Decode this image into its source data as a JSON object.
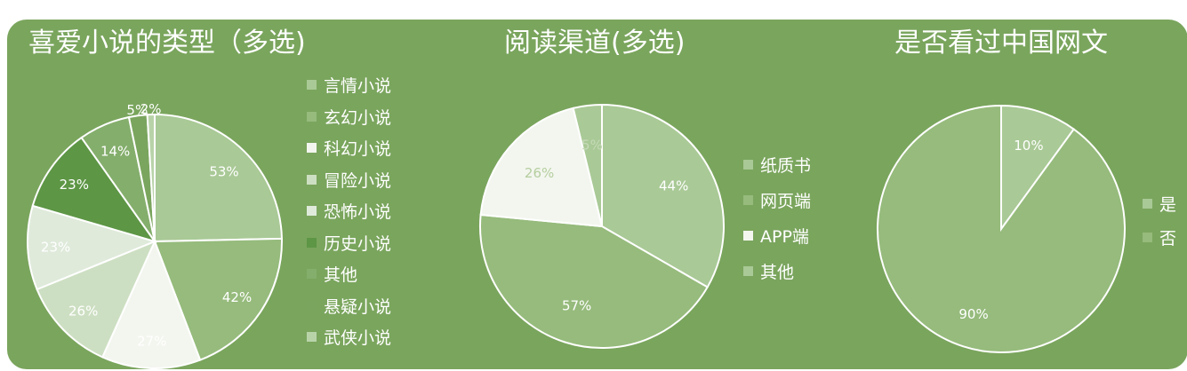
{
  "chart_data": [
    {
      "type": "pie",
      "title": "喜爱小说的类型（多选)",
      "categories": [
        "言情小说",
        "玄幻小说",
        "科幻小说",
        "冒险小说",
        "恐怖小说",
        "历史小说",
        "其他",
        "悬疑小说",
        "武侠小说"
      ],
      "values": [
        53,
        42,
        27,
        26,
        23,
        23,
        14,
        5,
        2
      ],
      "colors": [
        "#a9c996",
        "#96bb7c",
        "#f3f6ef",
        "#cddfc2",
        "#dfeadb",
        "#5d9645",
        "#84ae6c",
        "#7aa55e",
        "#b9d3a9"
      ],
      "legend": "right"
    },
    {
      "type": "pie",
      "title": "阅读渠道(多选)",
      "categories": [
        "纸质书",
        "网页端",
        "APP端",
        "其他"
      ],
      "values": [
        44,
        57,
        26,
        5
      ],
      "colors": [
        "#a9c996",
        "#96bb7c",
        "#f3f6ef",
        "#a9c996"
      ],
      "legend": "right"
    },
    {
      "type": "pie",
      "title": "是否看过中国网文",
      "categories": [
        "是",
        "否"
      ],
      "values": [
        10,
        90
      ],
      "colors": [
        "#a9c996",
        "#96bb7c"
      ],
      "legend": "right"
    }
  ]
}
